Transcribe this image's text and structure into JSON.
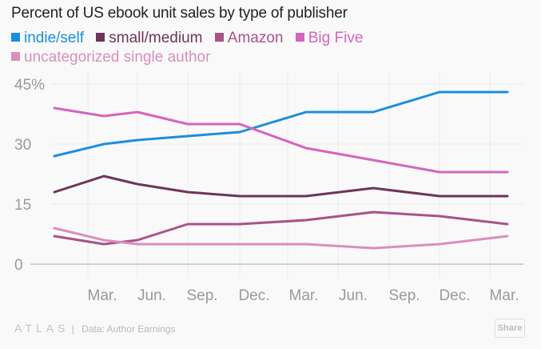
{
  "chart_data": {
    "type": "line",
    "title": "Percent of US ebook unit sales by type of publisher",
    "xlabel": "",
    "ylabel": "",
    "ylim": [
      0,
      45
    ],
    "y_ticks": [
      {
        "value": 0,
        "label": "0"
      },
      {
        "value": 15,
        "label": "15"
      },
      {
        "value": 30,
        "label": "30"
      },
      {
        "value": 45,
        "label": "45%"
      }
    ],
    "x_tick_labels": [
      "Mar.",
      "Jun.",
      "Sep.",
      "Dec.",
      "Mar.",
      "Jun.",
      "Sep.",
      "Dec.",
      "Mar."
    ],
    "grid": true,
    "legend_position": "top-left",
    "series": [
      {
        "name": "indie/self",
        "color": "#1a8fdd",
        "values": [
          27,
          30,
          31,
          32,
          33,
          38,
          38,
          43,
          43
        ]
      },
      {
        "name": "small/medium",
        "color": "#6d3558",
        "values": [
          18,
          22,
          20,
          18,
          17,
          17,
          19,
          17,
          17
        ]
      },
      {
        "name": "Amazon",
        "color": "#a8538a",
        "values": [
          7,
          5,
          6,
          10,
          10,
          11,
          13,
          12,
          10
        ]
      },
      {
        "name": "Big Five",
        "color": "#d465be",
        "values": [
          39,
          37,
          38,
          35,
          35,
          29,
          26,
          23,
          23
        ]
      },
      {
        "name": "uncategorized single author",
        "color": "#d98fbc",
        "values": [
          9,
          6,
          5,
          5,
          5,
          5,
          4,
          5,
          7
        ]
      }
    ]
  },
  "footer": {
    "brand": "ATLAS",
    "separator": "|",
    "source": "Data: Author Earnings",
    "share_label": "Share"
  }
}
